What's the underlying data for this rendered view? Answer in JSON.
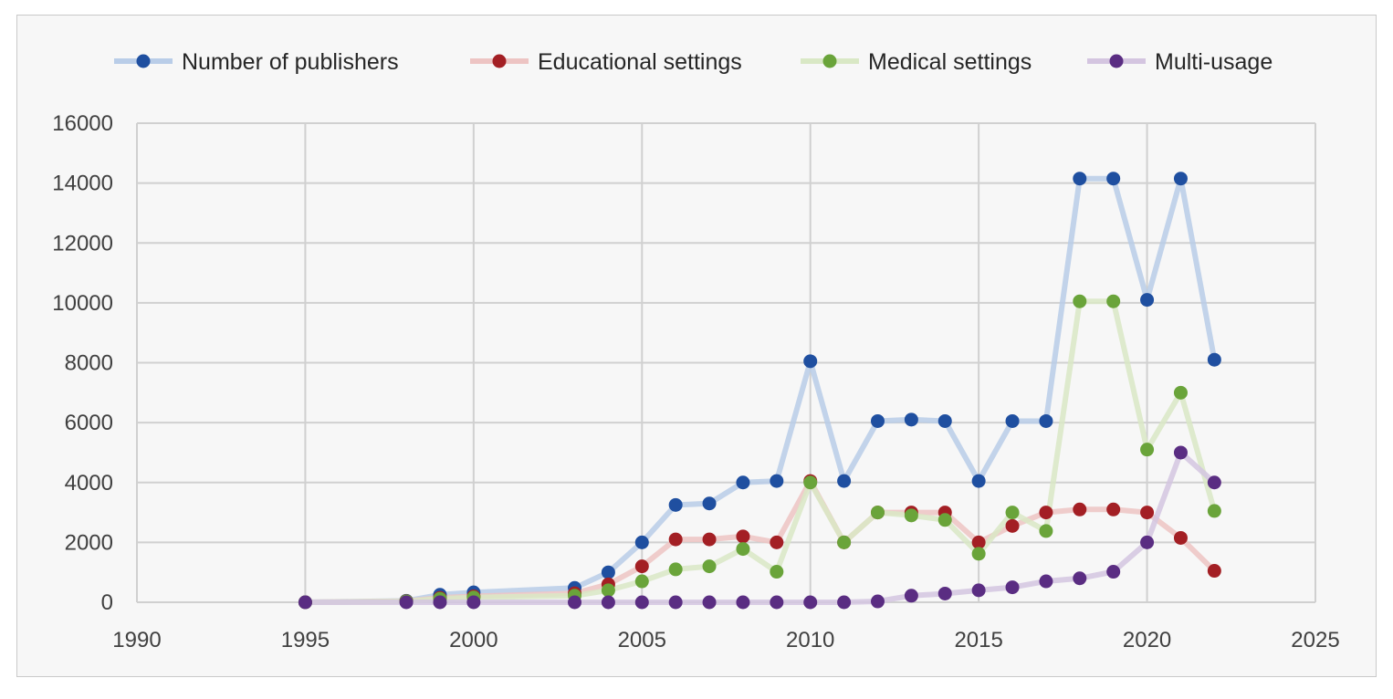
{
  "chart_data": {
    "type": "line",
    "title": "",
    "xlabel": "",
    "ylabel": "",
    "xlim": [
      1990,
      2025
    ],
    "ylim": [
      0,
      16000
    ],
    "x_ticks": [
      1990,
      1995,
      2000,
      2005,
      2010,
      2015,
      2020,
      2025
    ],
    "y_ticks": [
      0,
      2000,
      4000,
      6000,
      8000,
      10000,
      12000,
      14000,
      16000
    ],
    "x_tick_labels": [
      "1990",
      "1995",
      "2000",
      "2005",
      "2010",
      "2015",
      "2020",
      "2025"
    ],
    "y_tick_labels": [
      "0",
      "2000",
      "4000",
      "6000",
      "8000",
      "10000",
      "12000",
      "14000",
      "16000"
    ],
    "grid": true,
    "legend_position": "top",
    "x": [
      1995,
      1998,
      1999,
      2000,
      2003,
      2004,
      2005,
      2006,
      2007,
      2008,
      2009,
      2010,
      2011,
      2012,
      2013,
      2014,
      2015,
      2016,
      2017,
      2018,
      2019,
      2020,
      2021,
      2022
    ],
    "series": [
      {
        "name": "Number of publishers",
        "color": "#1f4fa0",
        "line_color": "#b9cde8",
        "values": [
          0,
          50,
          250,
          330,
          480,
          1000,
          2000,
          3250,
          3300,
          4000,
          4050,
          8050,
          4050,
          6050,
          6100,
          6050,
          4050,
          6050,
          6050,
          14150,
          14150,
          10100,
          14150,
          8100
        ]
      },
      {
        "name": "Educational settings",
        "color": "#a31f24",
        "line_color": "#edc4c3",
        "values": [
          0,
          40,
          150,
          200,
          300,
          600,
          1200,
          2100,
          2100,
          2200,
          2000,
          4050,
          2000,
          3000,
          3000,
          3000,
          2000,
          2550,
          3000,
          3100,
          3100,
          3000,
          2150,
          1050
        ]
      },
      {
        "name": "Medical settings",
        "color": "#6aa43a",
        "line_color": "#d9e8c5",
        "values": [
          0,
          30,
          120,
          160,
          220,
          400,
          700,
          1100,
          1200,
          1780,
          1020,
          4000,
          2000,
          3000,
          2900,
          2750,
          1620,
          3000,
          2380,
          10050,
          10050,
          5100,
          7000,
          3050
        ]
      },
      {
        "name": "Multi-usage",
        "color": "#5a2d82",
        "line_color": "#d4c5e0",
        "values": [
          0,
          0,
          0,
          0,
          0,
          0,
          0,
          0,
          0,
          0,
          0,
          0,
          0,
          30,
          220,
          290,
          400,
          500,
          700,
          800,
          1020,
          2000,
          5000,
          4000
        ]
      }
    ]
  }
}
